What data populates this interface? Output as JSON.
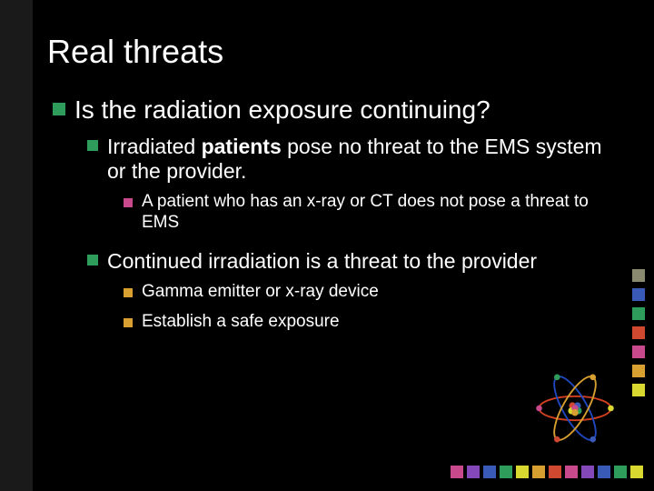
{
  "title": "Real threats",
  "colors": {
    "bullet_l1": "#2e9c5a",
    "bullet_l2": "#2e9c5a",
    "bullet_l3a": "#c94a8c",
    "bullet_l3b": "#d8a030"
  },
  "l1": "Is the radiation exposure continuing?",
  "l2a_pre": "Irradiated ",
  "l2a_bold": "patients",
  "l2a_post": " pose no threat to the EMS system or the provider.",
  "l3a": "A patient who has an x-ray or CT does not pose a threat to EMS",
  "l2b": "Continued irradiation is a threat to the provider",
  "l3b1": "Gamma emitter or x-ray device",
  "l3b2": "Establish a safe exposure",
  "bottom_sq_colors": [
    "#c94a8c",
    "#8548b8",
    "#3a5ab8",
    "#2e9c5a",
    "#d8d830",
    "#d8a030",
    "#d04830",
    "#c94a8c",
    "#8548b8",
    "#3a5ab8",
    "#2e9c5a",
    "#d8d830"
  ],
  "right_sq_colors": [
    "#8a8a70",
    "#3a5ab8",
    "#2e9c5a",
    "#d04830",
    "#c94a8c",
    "#d8a030",
    "#d8d830"
  ],
  "atom": {
    "orbit_colors": [
      "#d04020",
      "#2048c0",
      "#d8a030"
    ],
    "electron_colors": [
      "#d8d830",
      "#c94a8c",
      "#3a5ab8",
      "#2e9c5a",
      "#d04830",
      "#d8a030"
    ],
    "nucleus_colors": [
      "#d04830",
      "#3a5ab8",
      "#d8d830",
      "#2e9c5a",
      "#c94a8c",
      "#d8a030"
    ]
  }
}
